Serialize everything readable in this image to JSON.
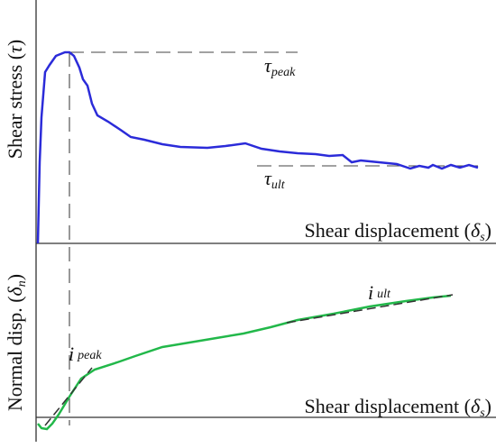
{
  "top_panel": {
    "y_label": {
      "prefix": "Shear stress (",
      "symbol": "τ",
      "suffix": ")"
    },
    "x_label": {
      "prefix": "Shear displacement (",
      "symbol": "δ",
      "subscript": "s",
      "suffix": ")"
    },
    "peak_label": {
      "symbol": "τ",
      "subscript": "peak"
    },
    "ult_label": {
      "symbol": "τ",
      "subscript": "ult"
    }
  },
  "bottom_panel": {
    "y_label": {
      "prefix": "Normal disp. (",
      "symbol": "δ",
      "subscript": "n",
      "suffix": ")"
    },
    "x_label": {
      "prefix": "Shear displacement (",
      "symbol": "δ",
      "subscript": "s",
      "suffix": ")"
    },
    "peak_label": {
      "symbol": "i",
      "subscript": "peak"
    },
    "ult_label": {
      "symbol": "i",
      "subscript": "ult"
    }
  }
}
